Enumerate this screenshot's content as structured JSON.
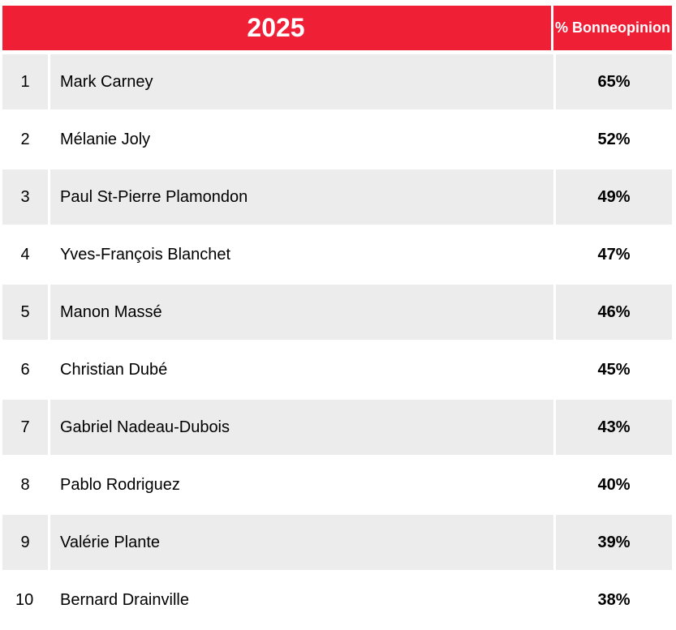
{
  "header": {
    "title": "2025",
    "column": "% Bonne opinion",
    "color": "#ef1f36"
  },
  "chart_data": {
    "type": "table",
    "title": "2025",
    "columns": [
      "",
      "",
      "% Bonne opinion"
    ],
    "rows": [
      {
        "rank": "1",
        "name": "Mark Carney",
        "value": "65%"
      },
      {
        "rank": "2",
        "name": "Mélanie Joly",
        "value": "52%"
      },
      {
        "rank": "3",
        "name": "Paul St-Pierre Plamondon",
        "value": "49%"
      },
      {
        "rank": "4",
        "name": "Yves-François Blanchet",
        "value": "47%"
      },
      {
        "rank": "5",
        "name": "Manon Massé",
        "value": "46%"
      },
      {
        "rank": "6",
        "name": "Christian Dubé",
        "value": "45%"
      },
      {
        "rank": "7",
        "name": "Gabriel Nadeau-Dubois",
        "value": "43%"
      },
      {
        "rank": "8",
        "name": "Pablo Rodriguez",
        "value": "40%"
      },
      {
        "rank": "9",
        "name": "Valérie Plante",
        "value": "39%"
      },
      {
        "rank": "10",
        "name": "Bernard Drainville",
        "value": "38%"
      }
    ]
  }
}
